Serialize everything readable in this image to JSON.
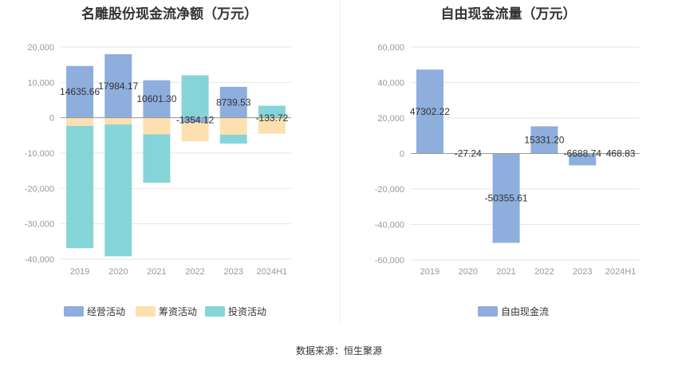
{
  "source_text": "数据来源：恒生聚源",
  "colors": {
    "operating": "#8eaedd",
    "financing": "#fde0b0",
    "investing": "#85d5d8",
    "free_cash_flow": "#8eaedd",
    "grid": "#e6e6e6",
    "axis": "#999999",
    "text": "#333333"
  },
  "chart_data": [
    {
      "type": "bar",
      "title": "名雕股份现金流净额（万元）",
      "stacked": true,
      "categories": [
        "2019",
        "2020",
        "2021",
        "2022",
        "2023",
        "2024H1"
      ],
      "ylim": [
        -40000,
        20000
      ],
      "yticks": [
        20000,
        10000,
        0,
        -10000,
        -20000,
        -30000,
        -40000
      ],
      "ytick_labels": [
        "20,000",
        "10,000",
        "0",
        "-10,000",
        "-20,000",
        "-30,000",
        "-40,000"
      ],
      "series": [
        {
          "name": "经营活动",
          "values": [
            14635.66,
            17984.17,
            10601.3,
            -1354.12,
            8739.53,
            -133.72
          ]
        },
        {
          "name": "筹资活动",
          "values": [
            -2300,
            -1900,
            -4700,
            -5300,
            -4800,
            -4400
          ]
        },
        {
          "name": "投资活动",
          "values": [
            -34600,
            -37300,
            -13700,
            12000,
            -2500,
            3400
          ]
        }
      ],
      "data_labels": [
        "14635.66",
        "17984.17",
        "10601.30",
        "-1354.12",
        "8739.53",
        "-133.72"
      ],
      "legend": [
        "经营活动",
        "筹资活动",
        "投资活动"
      ]
    },
    {
      "type": "bar",
      "title": "自由现金流量（万元）",
      "categories": [
        "2019",
        "2020",
        "2021",
        "2022",
        "2023",
        "2024H1"
      ],
      "ylim": [
        -60000,
        60000
      ],
      "yticks": [
        60000,
        40000,
        20000,
        0,
        -20000,
        -40000,
        -60000
      ],
      "ytick_labels": [
        "60,000",
        "40,000",
        "20,000",
        "0",
        "-20,000",
        "-40,000",
        "-60,000"
      ],
      "series": [
        {
          "name": "自由现金流",
          "values": [
            47302.22,
            -27.24,
            -50355.61,
            15331.2,
            -6688.74,
            468.83
          ]
        }
      ],
      "data_labels": [
        "47302.22",
        "-27.24",
        "-50355.61",
        "15331.20",
        "-6688.74",
        "468.83"
      ],
      "legend": [
        "自由现金流"
      ]
    }
  ]
}
